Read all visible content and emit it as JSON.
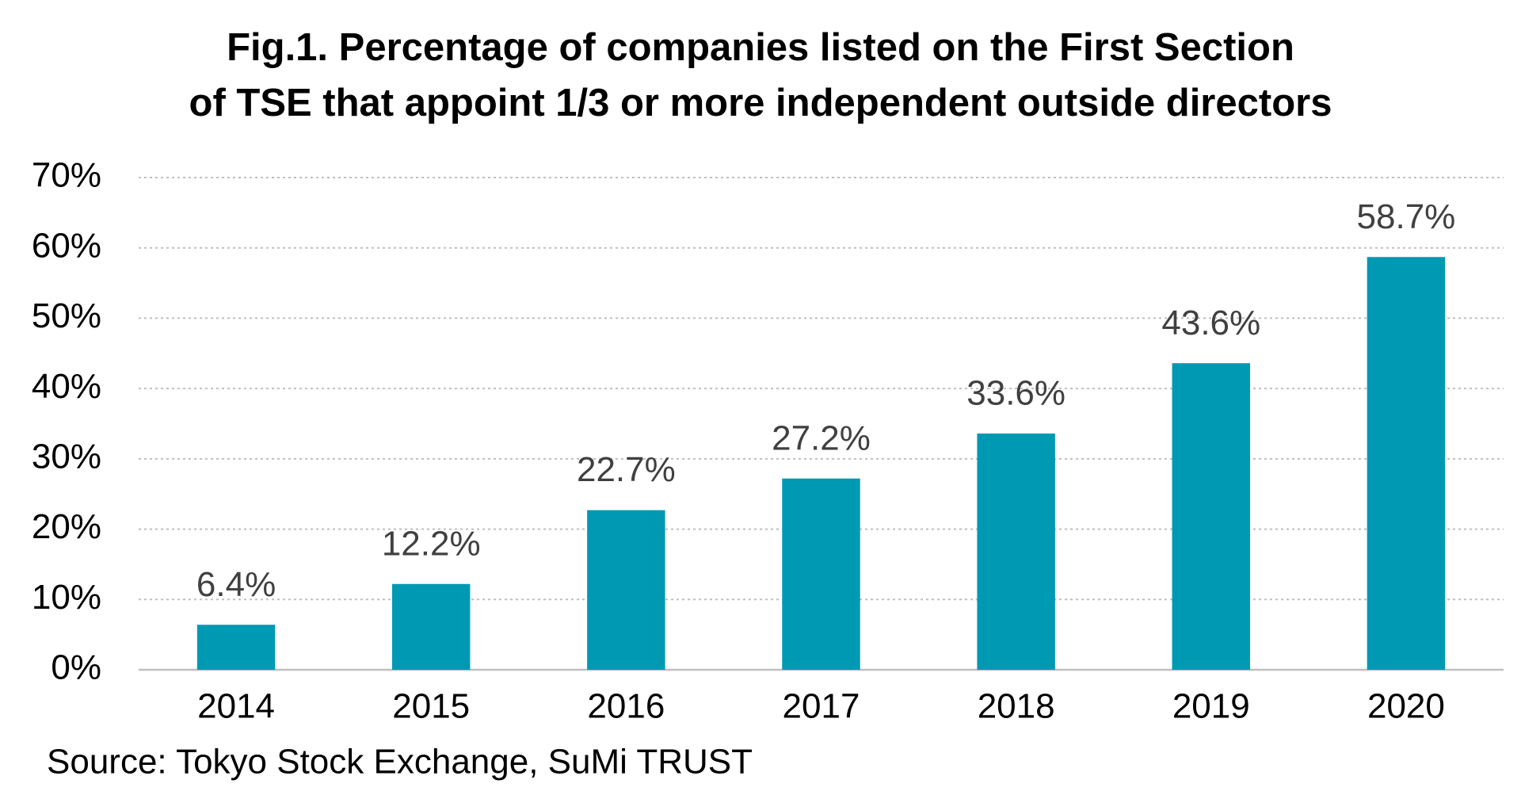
{
  "chart_data": {
    "type": "bar",
    "title": [
      "Fig.1. Percentage of companies listed on the First Section",
      "of TSE that appoint 1/3 or more independent outside directors"
    ],
    "categories": [
      "2014",
      "2015",
      "2016",
      "2017",
      "2018",
      "2019",
      "2020"
    ],
    "values": [
      6.4,
      12.2,
      22.7,
      27.2,
      33.6,
      43.6,
      58.7
    ],
    "value_labels": [
      "6.4%",
      "12.2%",
      "22.7%",
      "27.2%",
      "33.6%",
      "43.6%",
      "58.7%"
    ],
    "color": "#0099b3",
    "ylim": [
      0,
      70
    ],
    "yticks": [
      {
        "value": 0,
        "label": "0%"
      },
      {
        "value": 10,
        "label": "10%"
      },
      {
        "value": 20,
        "label": "20%"
      },
      {
        "value": 30,
        "label": "30%"
      },
      {
        "value": 40,
        "label": "40%"
      },
      {
        "value": 50,
        "label": "50%"
      },
      {
        "value": 60,
        "label": "60%"
      },
      {
        "value": 70,
        "label": "70%"
      }
    ],
    "grid": true,
    "source": "Source: Tokyo Stock Exchange, SuMi TRUST"
  }
}
